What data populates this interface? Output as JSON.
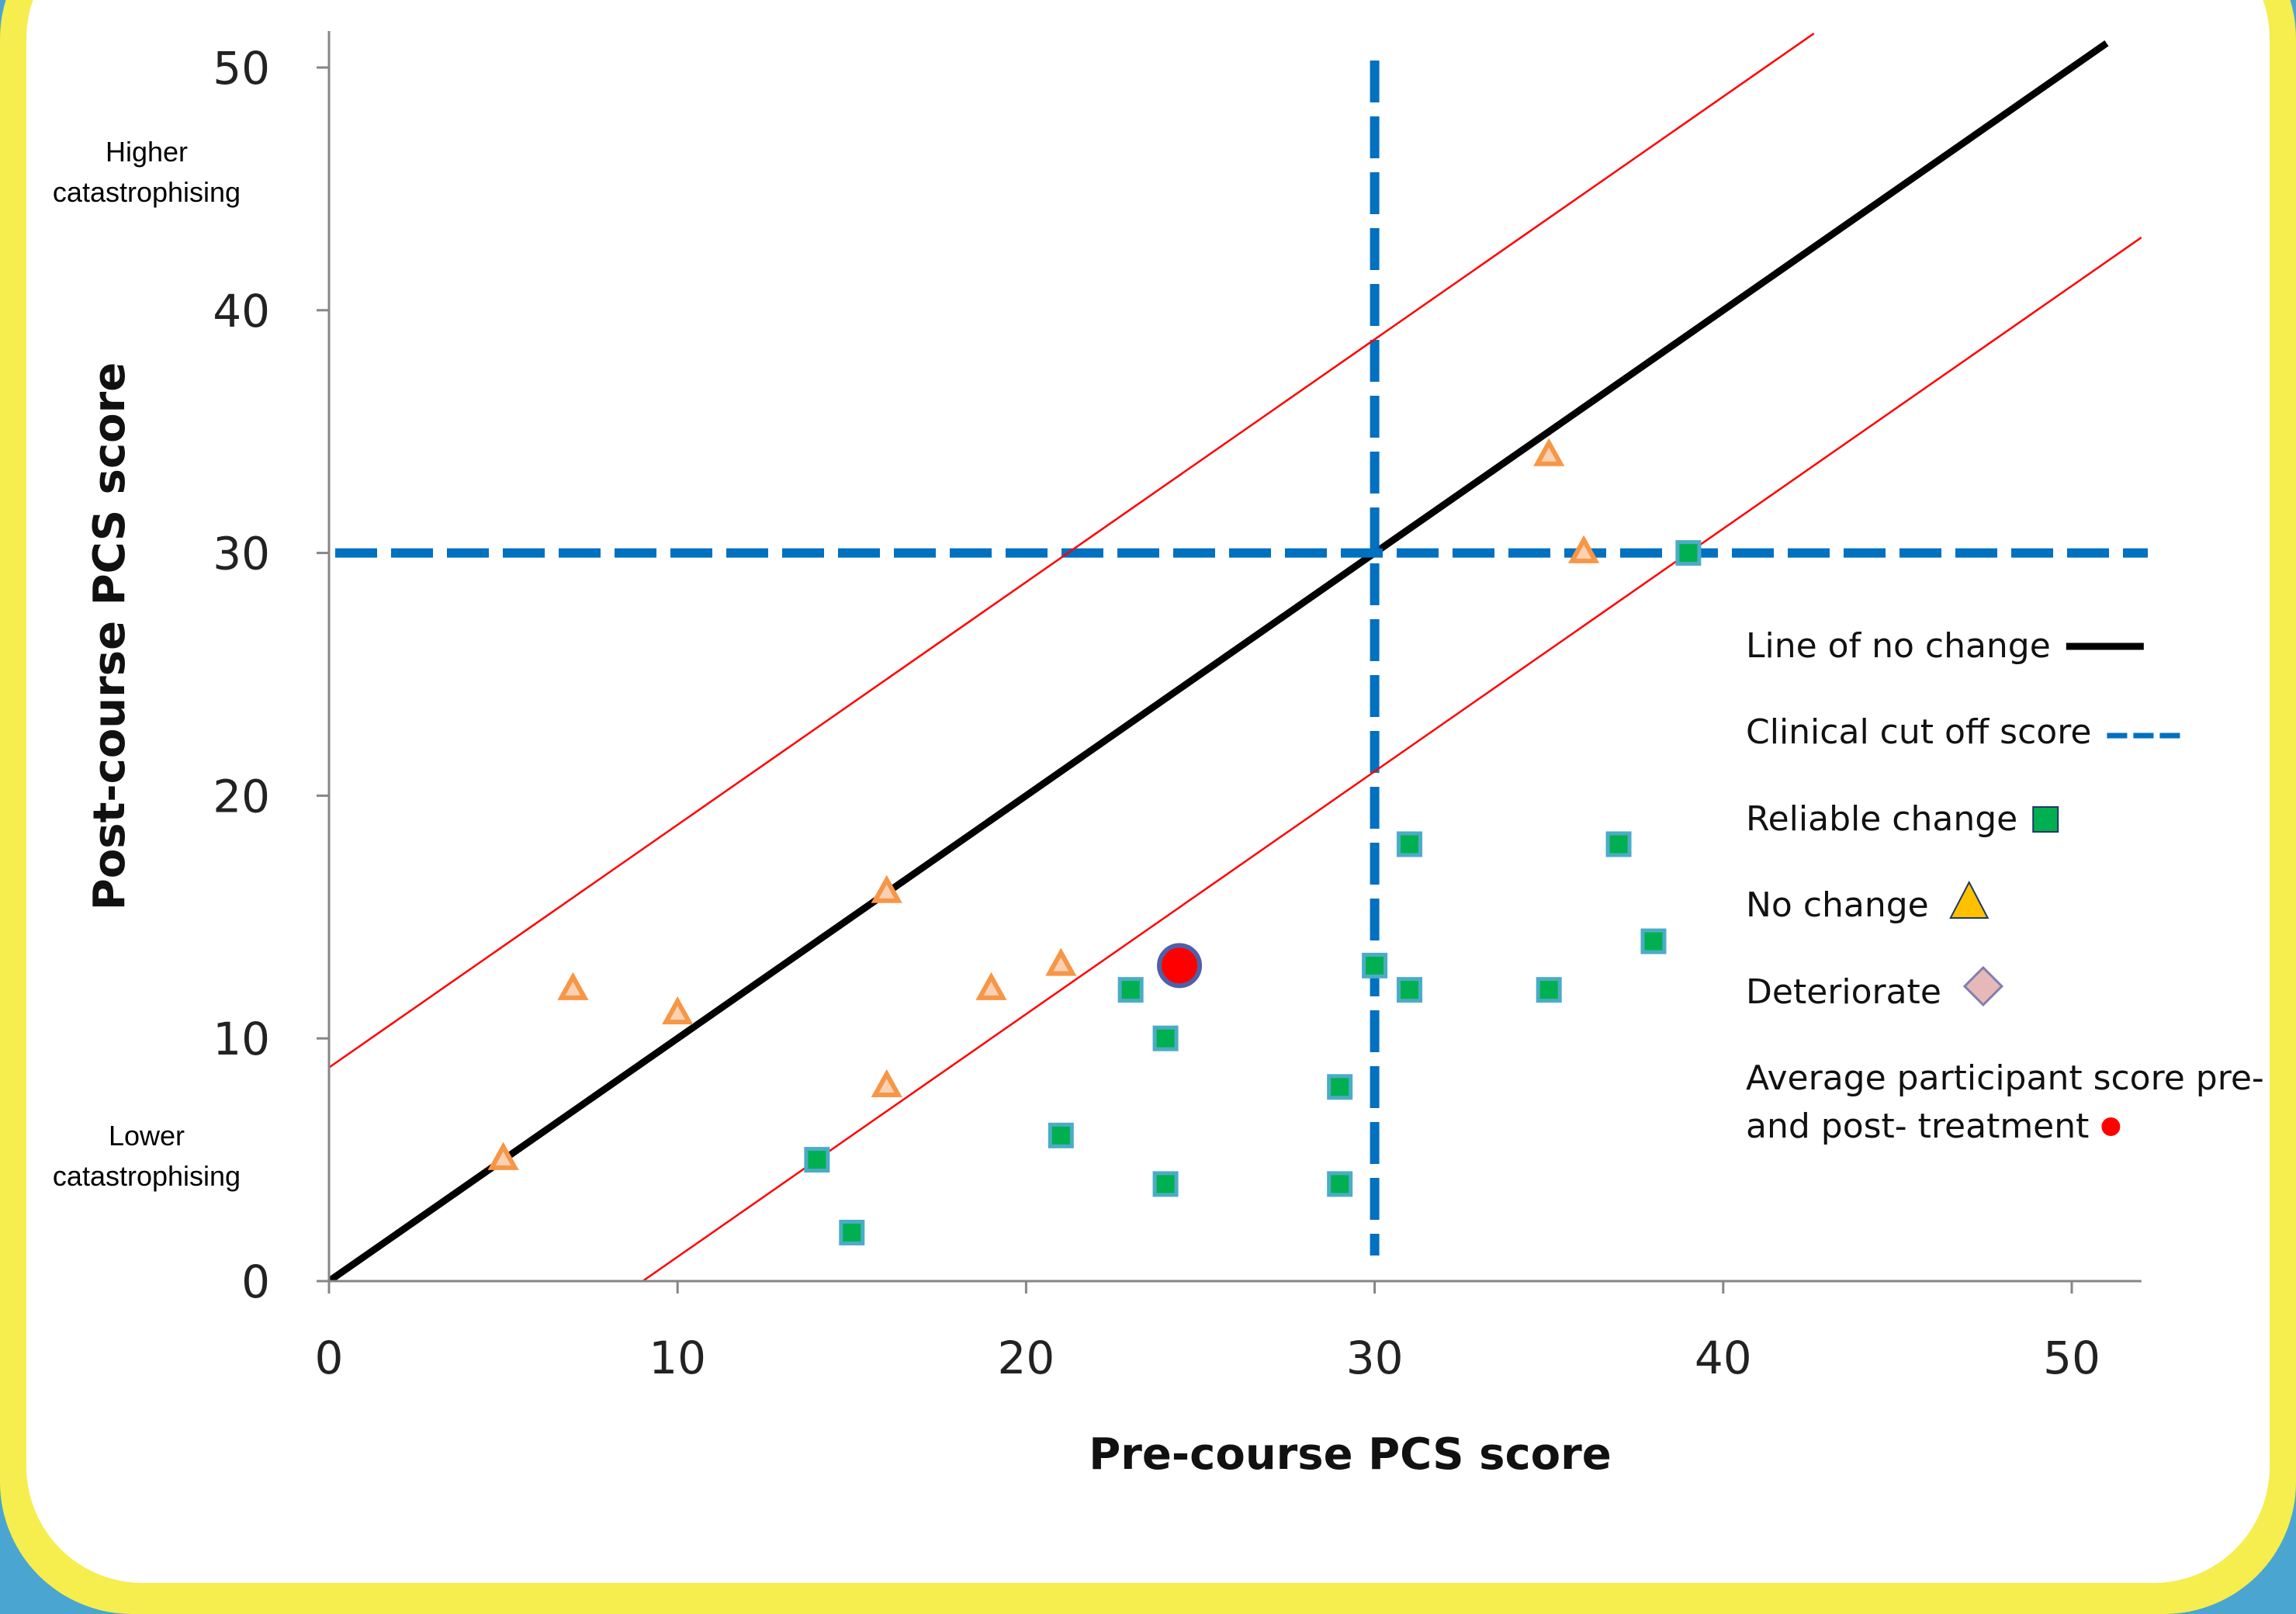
{
  "chart_data": {
    "type": "scatter",
    "title": "",
    "xlabel": "Pre-course PCS score",
    "ylabel": "Post-course PCS score",
    "xlim": [
      0,
      52
    ],
    "ylim": [
      0,
      52
    ],
    "x_ticks": [
      0,
      10,
      20,
      30,
      40,
      50
    ],
    "y_ticks": [
      0,
      10,
      20,
      30,
      40,
      50
    ],
    "grid": false,
    "legend_position": "right",
    "annotations": {
      "upper": [
        "Higher",
        "catastrophising"
      ],
      "lower": [
        "Lower",
        "catastrophising"
      ]
    },
    "series": [
      {
        "name": "Reliable change",
        "marker": "square",
        "color": "#00b050",
        "points": [
          [
            14,
            5
          ],
          [
            15,
            2
          ],
          [
            21,
            6
          ],
          [
            23,
            12
          ],
          [
            24,
            10
          ],
          [
            24,
            4
          ],
          [
            29,
            8
          ],
          [
            29,
            4
          ],
          [
            30,
            13
          ],
          [
            31,
            18
          ],
          [
            31,
            12
          ],
          [
            35,
            12
          ],
          [
            37,
            18
          ],
          [
            38,
            14
          ],
          [
            39,
            30
          ]
        ]
      },
      {
        "name": "No change",
        "marker": "triangle",
        "color": "#f79646",
        "points": [
          [
            5,
            5
          ],
          [
            7,
            12
          ],
          [
            10,
            11
          ],
          [
            16,
            16
          ],
          [
            16,
            8
          ],
          [
            19,
            12
          ],
          [
            21,
            13
          ],
          [
            35,
            34
          ],
          [
            36,
            30
          ]
        ]
      },
      {
        "name": "Deteriorate",
        "marker": "diamond",
        "color": "#e6b9b8",
        "points": []
      },
      {
        "name": "Average participant score pre- and post- treatment",
        "marker": "circle",
        "color": "#ff0000",
        "points": [
          [
            24.4,
            13
          ]
        ]
      }
    ],
    "reference_lines": [
      {
        "name": "Line of no change",
        "kind": "line",
        "from": [
          0,
          0
        ],
        "to": [
          51,
          51
        ],
        "color": "#000000"
      },
      {
        "name": "Clinical cut off score",
        "kind": "hline",
        "y": 30,
        "color": "#0070c0"
      },
      {
        "name": "Clinical cut off score",
        "kind": "vline",
        "x": 30,
        "color": "#0070c0"
      },
      {
        "name": "Reliable change upper bound",
        "kind": "line",
        "from": [
          0,
          8.8
        ],
        "to": [
          42.6,
          51.4
        ],
        "color": "#ff0000"
      },
      {
        "name": "Reliable change lower bound",
        "kind": "line",
        "from": [
          9,
          0
        ],
        "to": [
          52,
          43
        ],
        "color": "#ff0000"
      }
    ],
    "legend": [
      {
        "label": "Line of no change",
        "symbol": "line"
      },
      {
        "label": "Clinical cut off score",
        "symbol": "dash"
      },
      {
        "label": "Reliable change",
        "symbol": "square"
      },
      {
        "label": "No change",
        "symbol": "triangle"
      },
      {
        "label": "Deteriorate",
        "symbol": "diamond"
      },
      {
        "label": [
          "Average participant score pre-",
          "and post- treatment"
        ],
        "symbol": "circle"
      }
    ]
  }
}
